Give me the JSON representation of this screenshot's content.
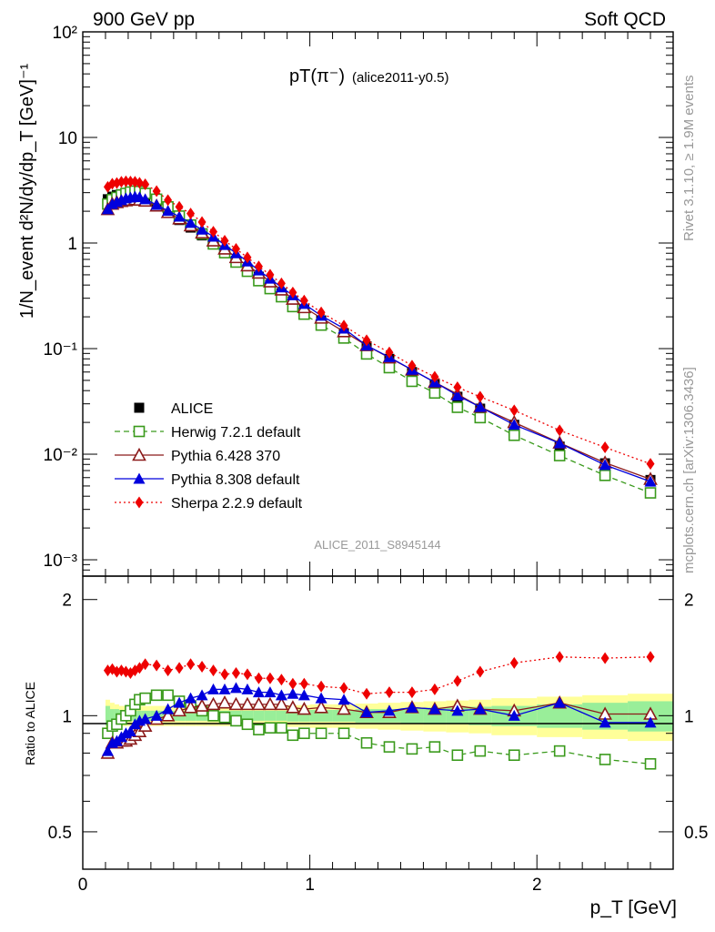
{
  "header": {
    "left": "900 GeV pp",
    "right": "Soft QCD"
  },
  "side_labels": {
    "rivet": "Rivet 3.1.10, ≥ 1.9M events",
    "mcplots": "mcplots.cern.ch [arXiv:1306.3436]"
  },
  "watermark": "ALICE_2011_S8945144",
  "main_title": {
    "text": "pT(π⁻)",
    "sub": "(alice2011-y0.5)"
  },
  "axes": {
    "ylabel_main": "1/N_event d²N/dy/dp_T [GeV]⁻¹",
    "ylabel_ratio": "Ratio to ALICE",
    "xlabel": "p_T [GeV]",
    "x_ticks": [
      "0",
      "1",
      "2"
    ],
    "y_ticks_main": [
      "10⁻³",
      "10⁻²",
      "10⁻¹",
      "1",
      "10",
      "10²"
    ],
    "y_ticks_ratio": [
      "0.5",
      "1",
      "2"
    ]
  },
  "legend": [
    {
      "label": "ALICE",
      "color": "#000000",
      "marker": "square-filled",
      "dash": ""
    },
    {
      "label": "Herwig 7.2.1 default",
      "color": "#3a9a1c",
      "marker": "square-open",
      "dash": "6,4"
    },
    {
      "label": "Pythia 6.428 370",
      "color": "#8b1a1a",
      "marker": "triangle-open",
      "dash": ""
    },
    {
      "label": "Pythia 8.308 default",
      "color": "#0000dd",
      "marker": "triangle-filled",
      "dash": ""
    },
    {
      "label": "Sherpa 2.2.9 default",
      "color": "#ee0000",
      "marker": "diamond",
      "dash": "2,3"
    }
  ],
  "chart_data": {
    "type": "scatter",
    "xlim": [
      0,
      2.6
    ],
    "ylim_main": [
      0.0007,
      100
    ],
    "ylim_ratio": [
      0.4,
      2.3
    ],
    "y_scale": "log",
    "x": [
      0.11,
      0.13,
      0.15,
      0.17,
      0.19,
      0.21,
      0.23,
      0.25,
      0.275,
      0.325,
      0.375,
      0.425,
      0.475,
      0.525,
      0.575,
      0.625,
      0.675,
      0.725,
      0.775,
      0.825,
      0.875,
      0.925,
      0.975,
      1.05,
      1.15,
      1.25,
      1.35,
      1.45,
      1.55,
      1.65,
      1.75,
      1.9,
      2.1,
      2.3,
      2.5
    ],
    "series": [
      {
        "name": "ALICE",
        "values": [
          2.6,
          2.75,
          2.85,
          2.9,
          2.95,
          2.95,
          2.9,
          2.8,
          2.65,
          2.3,
          1.95,
          1.65,
          1.4,
          1.18,
          0.98,
          0.82,
          0.68,
          0.57,
          0.48,
          0.4,
          0.335,
          0.28,
          0.235,
          0.185,
          0.14,
          0.105,
          0.08,
          0.06,
          0.046,
          0.035,
          0.027,
          0.019,
          0.0118,
          0.0082,
          0.0057
        ]
      },
      {
        "name": "Herwig 7.2.1 default",
        "values": [
          2.34,
          2.58,
          2.7,
          2.85,
          2.95,
          3.04,
          3.1,
          3.08,
          2.95,
          2.6,
          2.2,
          1.8,
          1.48,
          1.22,
          0.98,
          0.81,
          0.66,
          0.54,
          0.44,
          0.37,
          0.31,
          0.25,
          0.212,
          0.167,
          0.126,
          0.089,
          0.066,
          0.049,
          0.038,
          0.0278,
          0.0222,
          0.0151,
          0.0097,
          0.0063,
          0.0043
        ]
      },
      {
        "name": "Pythia 6.428 370",
        "values": [
          2.08,
          2.34,
          2.42,
          2.48,
          2.52,
          2.55,
          2.58,
          2.56,
          2.5,
          2.25,
          1.95,
          1.7,
          1.46,
          1.25,
          1.05,
          0.88,
          0.73,
          0.61,
          0.52,
          0.43,
          0.36,
          0.295,
          0.245,
          0.195,
          0.145,
          0.107,
          0.082,
          0.063,
          0.048,
          0.037,
          0.028,
          0.02,
          0.0128,
          0.0083,
          0.0058
        ]
      },
      {
        "name": "Pythia 8.308 default",
        "values": [
          2.09,
          2.34,
          2.45,
          2.55,
          2.65,
          2.7,
          2.75,
          2.72,
          2.6,
          2.3,
          2.02,
          1.78,
          1.55,
          1.34,
          1.15,
          0.96,
          0.8,
          0.67,
          0.55,
          0.46,
          0.38,
          0.32,
          0.265,
          0.205,
          0.155,
          0.107,
          0.083,
          0.063,
          0.048,
          0.036,
          0.028,
          0.019,
          0.0127,
          0.0079,
          0.0055
        ]
      },
      {
        "name": "Sherpa 2.2.9 default",
        "values": [
          3.4,
          3.64,
          3.7,
          3.8,
          3.84,
          3.82,
          3.8,
          3.72,
          3.6,
          3.1,
          2.55,
          2.2,
          1.9,
          1.58,
          1.28,
          1.05,
          0.88,
          0.73,
          0.6,
          0.5,
          0.415,
          0.34,
          0.285,
          0.22,
          0.165,
          0.12,
          0.092,
          0.069,
          0.054,
          0.043,
          0.035,
          0.026,
          0.0168,
          0.0116,
          0.0081
        ]
      }
    ],
    "ratio_series": [
      {
        "name": "Herwig 7.2.1 default",
        "values": [
          0.9,
          0.94,
          0.95,
          0.98,
          1.0,
          1.03,
          1.07,
          1.1,
          1.11,
          1.13,
          1.13,
          1.09,
          1.06,
          1.03,
          1.0,
          0.99,
          0.97,
          0.95,
          0.92,
          0.93,
          0.93,
          0.89,
          0.9,
          0.9,
          0.9,
          0.85,
          0.83,
          0.82,
          0.83,
          0.79,
          0.81,
          0.79,
          0.81,
          0.77,
          0.75
        ]
      },
      {
        "name": "Pythia 6.428 370",
        "values": [
          0.8,
          0.85,
          0.85,
          0.86,
          0.86,
          0.87,
          0.89,
          0.91,
          0.94,
          0.98,
          1.0,
          1.03,
          1.05,
          1.06,
          1.07,
          1.08,
          1.07,
          1.07,
          1.07,
          1.07,
          1.07,
          1.05,
          1.04,
          1.05,
          1.04,
          1.02,
          1.02,
          1.05,
          1.04,
          1.06,
          1.04,
          1.03,
          1.08,
          1.01,
          1.01
        ]
      },
      {
        "name": "Pythia 8.308 default",
        "values": [
          0.81,
          0.85,
          0.86,
          0.88,
          0.9,
          0.91,
          0.95,
          0.97,
          0.98,
          1.0,
          1.04,
          1.08,
          1.11,
          1.13,
          1.17,
          1.17,
          1.18,
          1.17,
          1.15,
          1.15,
          1.13,
          1.14,
          1.13,
          1.11,
          1.1,
          1.02,
          1.03,
          1.05,
          1.04,
          1.03,
          1.04,
          1.0,
          1.08,
          0.96,
          0.96
        ]
      },
      {
        "name": "Sherpa 2.2.9 default",
        "values": [
          1.31,
          1.32,
          1.3,
          1.31,
          1.3,
          1.29,
          1.31,
          1.33,
          1.36,
          1.35,
          1.31,
          1.33,
          1.36,
          1.34,
          1.31,
          1.28,
          1.29,
          1.28,
          1.25,
          1.25,
          1.24,
          1.21,
          1.21,
          1.19,
          1.18,
          1.14,
          1.15,
          1.15,
          1.17,
          1.23,
          1.3,
          1.37,
          1.42,
          1.41,
          1.42
        ]
      }
    ],
    "ratio_bands": {
      "edges": [
        0.1,
        0.12,
        0.14,
        0.16,
        0.18,
        0.2,
        0.22,
        0.24,
        0.26,
        0.3,
        0.35,
        0.4,
        0.45,
        0.5,
        0.55,
        0.6,
        0.65,
        0.7,
        0.75,
        0.8,
        0.85,
        0.9,
        0.95,
        1.0,
        1.1,
        1.2,
        1.3,
        1.4,
        1.5,
        1.6,
        1.7,
        1.8,
        2.0,
        2.2,
        2.4,
        2.6
      ],
      "inner": [
        0.06,
        0.04,
        0.04,
        0.035,
        0.035,
        0.03,
        0.03,
        0.03,
        0.03,
        0.03,
        0.03,
        0.03,
        0.03,
        0.03,
        0.03,
        0.03,
        0.03,
        0.03,
        0.03,
        0.03,
        0.03,
        0.035,
        0.035,
        0.035,
        0.035,
        0.04,
        0.04,
        0.045,
        0.05,
        0.05,
        0.055,
        0.06,
        0.07,
        0.08,
        0.09
      ],
      "outer": [
        0.1,
        0.08,
        0.07,
        0.06,
        0.06,
        0.06,
        0.06,
        0.06,
        0.06,
        0.06,
        0.06,
        0.06,
        0.06,
        0.06,
        0.06,
        0.06,
        0.06,
        0.06,
        0.06,
        0.06,
        0.06,
        0.065,
        0.065,
        0.07,
        0.07,
        0.075,
        0.08,
        0.085,
        0.09,
        0.095,
        0.1,
        0.11,
        0.12,
        0.13,
        0.14
      ]
    },
    "reference_line": 1
  }
}
